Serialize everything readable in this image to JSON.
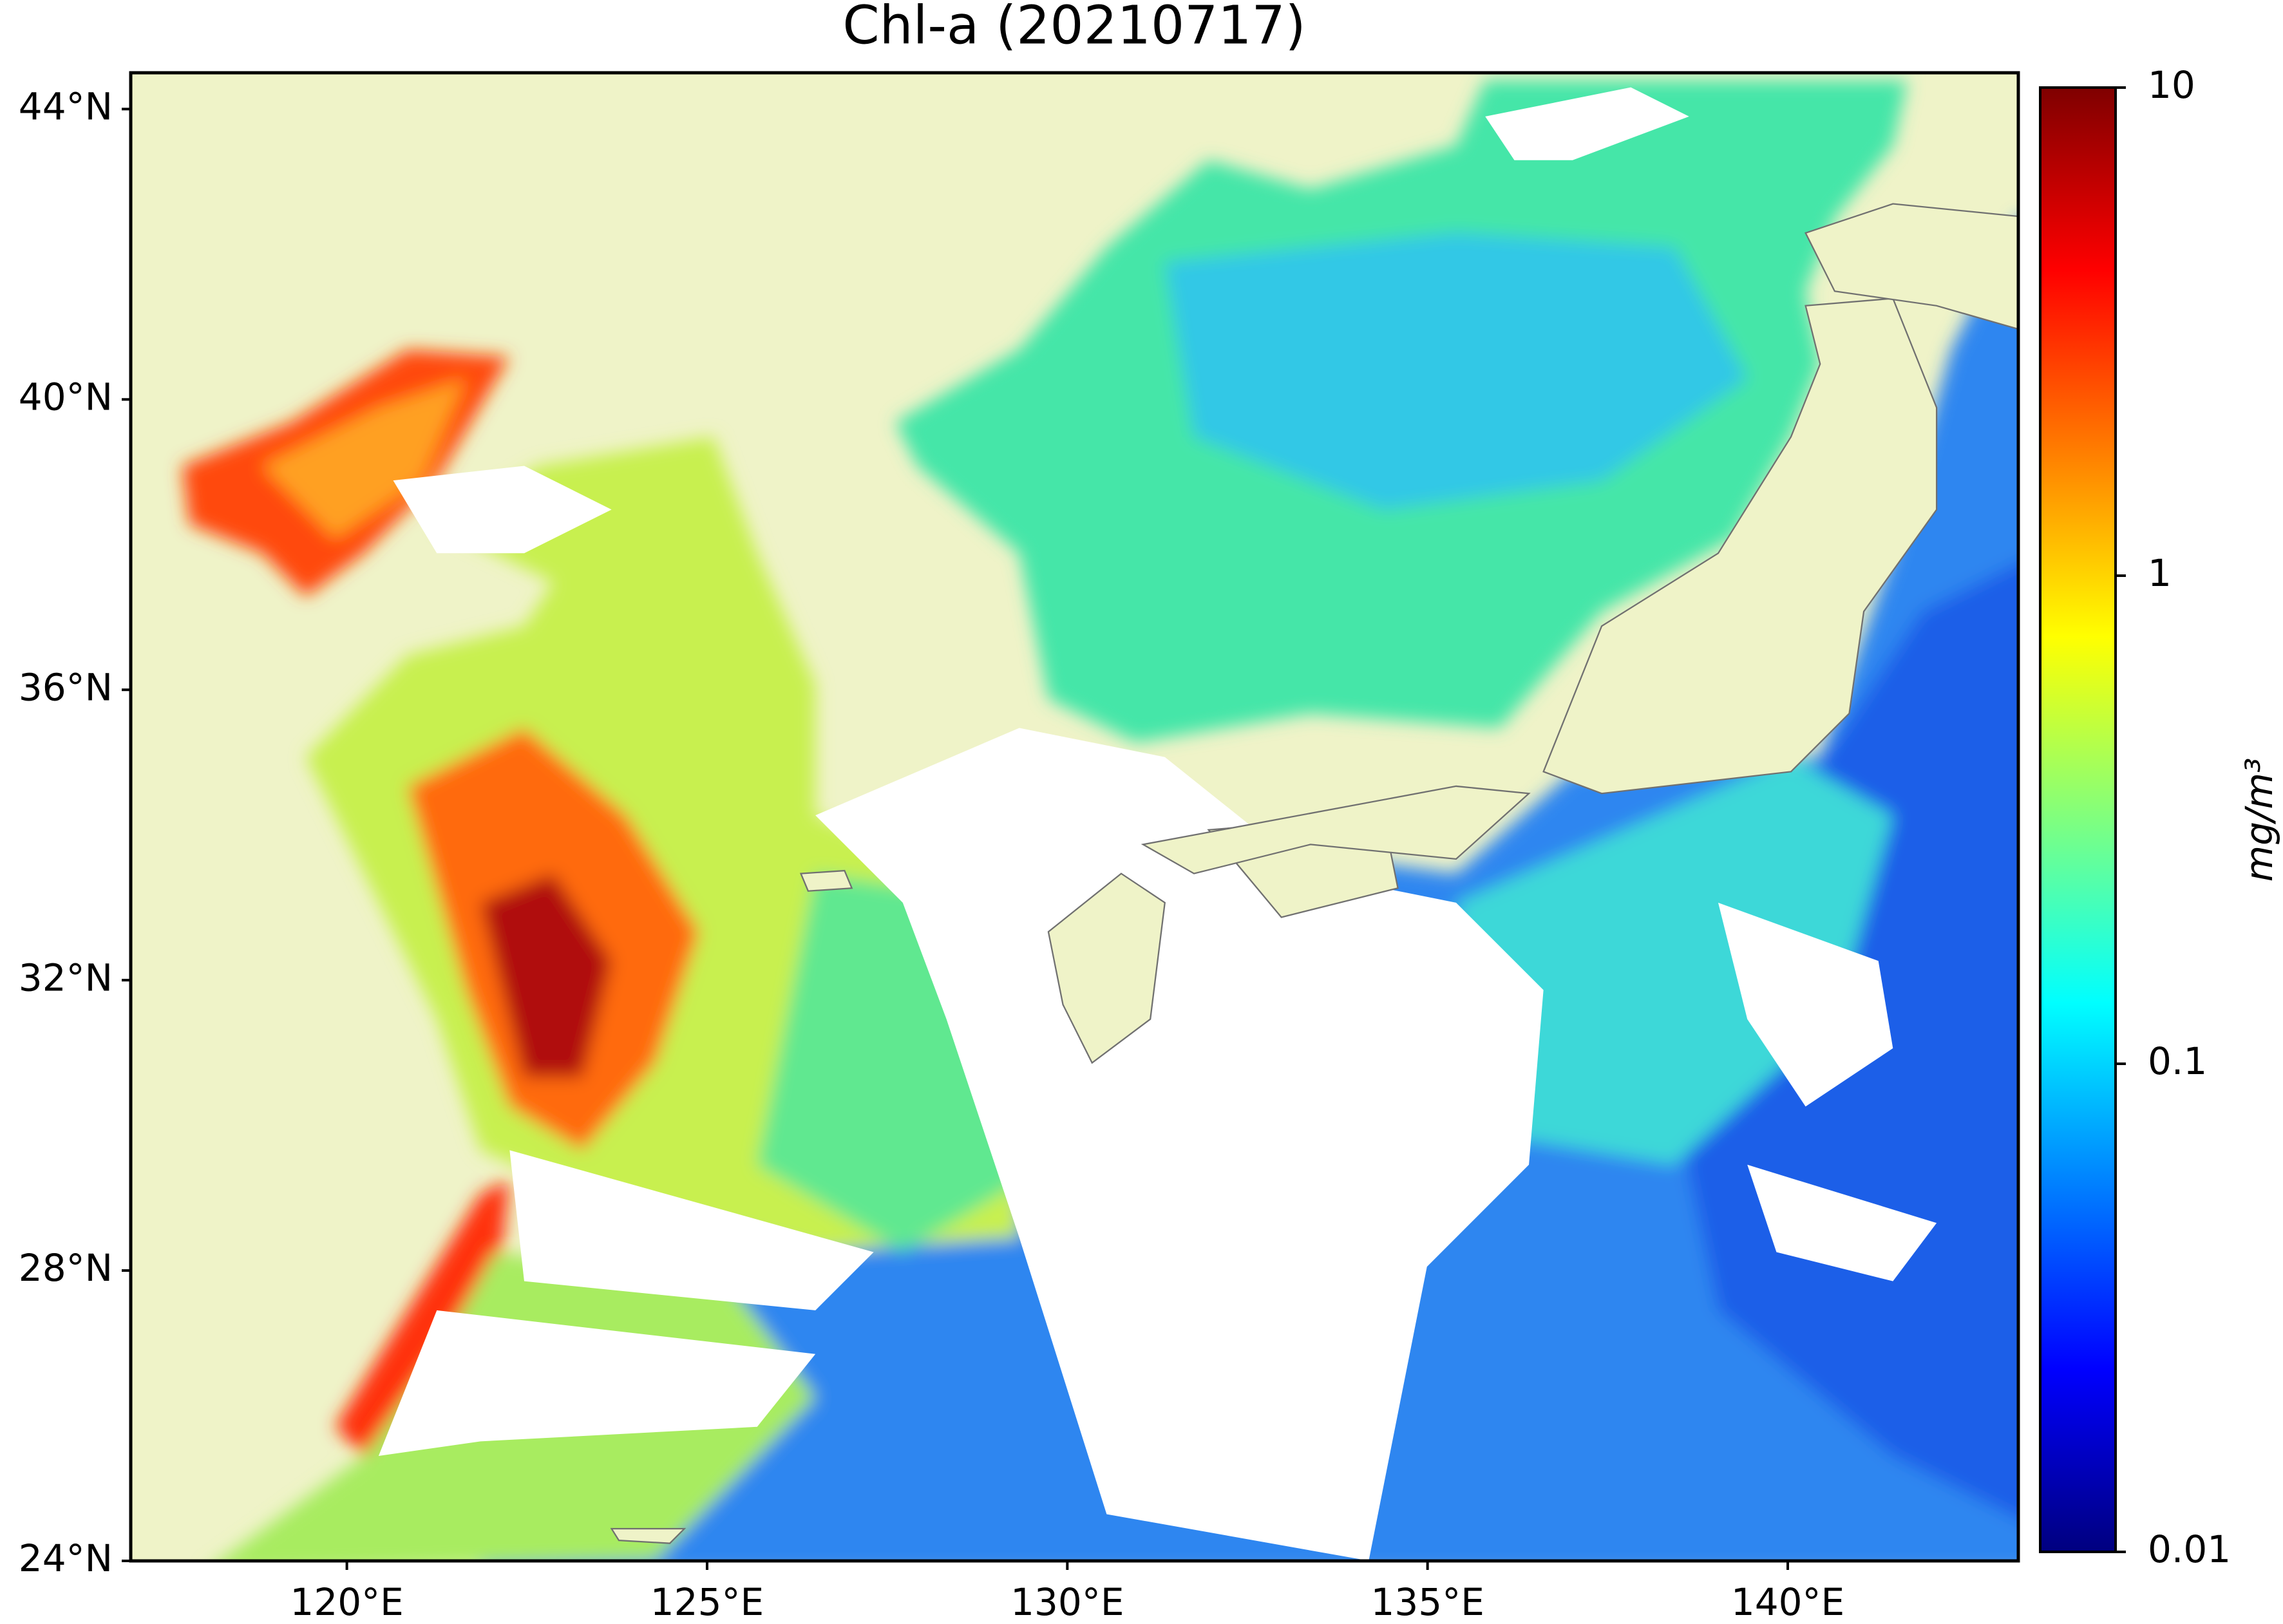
{
  "chart_data": {
    "type": "map",
    "title": "Chl-a (20210717)",
    "xlim": [
      117,
      143.2
    ],
    "ylim": [
      24,
      44.5
    ],
    "xticks": [
      {
        "value": 120,
        "label": "120°E"
      },
      {
        "value": 125,
        "label": "125°E"
      },
      {
        "value": 130,
        "label": "130°E"
      },
      {
        "value": 135,
        "label": "135°E"
      },
      {
        "value": 140,
        "label": "140°E"
      }
    ],
    "yticks": [
      {
        "value": 24,
        "label": "24°N"
      },
      {
        "value": 28,
        "label": "28°N"
      },
      {
        "value": 32,
        "label": "32°N"
      },
      {
        "value": 36,
        "label": "36°N"
      },
      {
        "value": 40,
        "label": "40°N"
      },
      {
        "value": 44,
        "label": "44°N"
      }
    ],
    "colorbar": {
      "label": "mg/m³",
      "scale": "log",
      "lim": [
        0.01,
        10
      ],
      "ticks": [
        0.01,
        0.1,
        1,
        10
      ],
      "colormap": "jet"
    }
  }
}
